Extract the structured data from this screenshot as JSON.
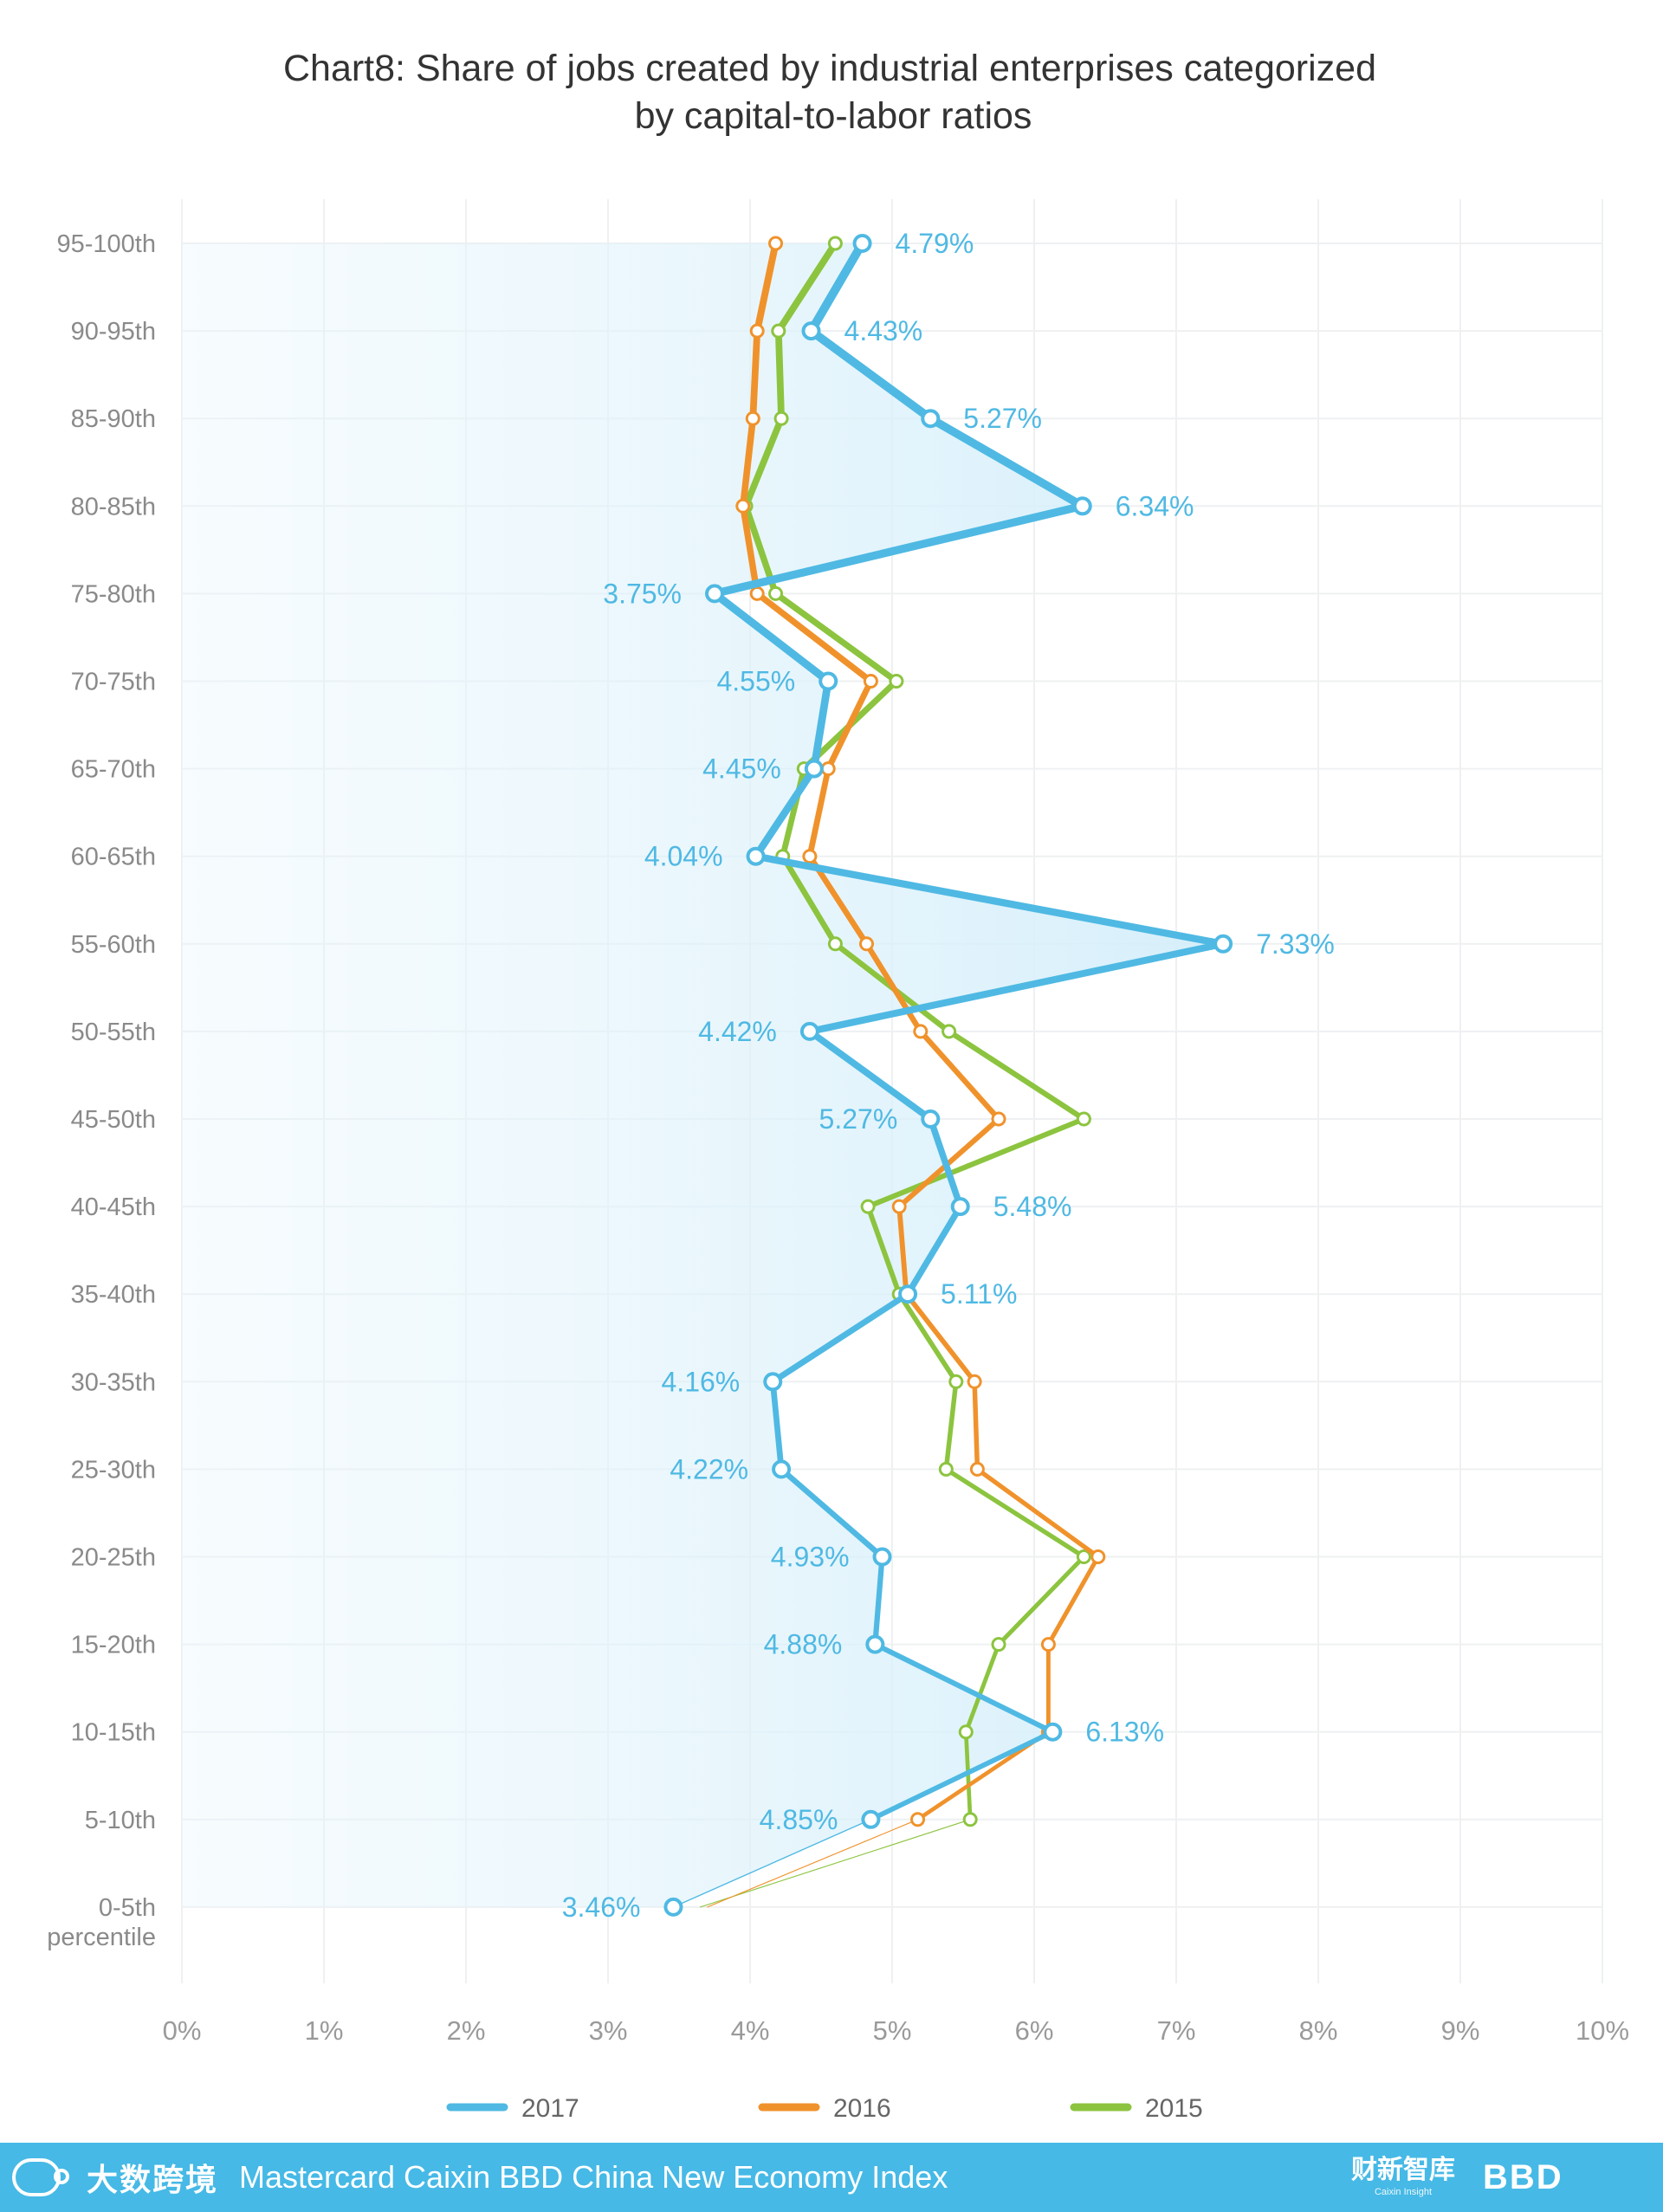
{
  "chart_data": {
    "type": "line",
    "orientation": "horizontal",
    "title_lines": [
      "Chart8: Share of jobs created by industrial enterprises categorized",
      "by capital-to-labor ratios"
    ],
    "categories": [
      "95-100th",
      "90-95th",
      "85-90th",
      "80-85th",
      "75-80th",
      "70-75th",
      "65-70th",
      "60-65th",
      "55-60th",
      "50-55th",
      "45-50th",
      "40-45th",
      "35-40th",
      "30-35th",
      "25-30th",
      "20-25th",
      "15-20th",
      "10-15th",
      "5-10th",
      "0-5th\npercentile"
    ],
    "x_ticks": [
      "0%",
      "1%",
      "2%",
      "3%",
      "4%",
      "5%",
      "6%",
      "7%",
      "8%",
      "9%",
      "10%"
    ],
    "xlim": [
      0,
      10
    ],
    "grid": true,
    "legend_position": "bottom",
    "series": [
      {
        "name": "2017",
        "color": "#4fb9e3",
        "values": [
          4.79,
          4.43,
          5.27,
          6.34,
          3.75,
          4.55,
          4.45,
          4.04,
          7.33,
          4.42,
          5.27,
          5.48,
          5.11,
          4.16,
          4.22,
          4.93,
          4.88,
          6.13,
          4.85,
          3.46
        ],
        "labels": [
          "4.79%",
          "4.43%",
          "5.27%",
          "6.34%",
          "3.75%",
          "4.55%",
          "4.45%",
          "4.04%",
          "7.33%",
          "4.42%",
          "5.27%",
          "5.48%",
          "5.11%",
          "4.16%",
          "4.22%",
          "4.93%",
          "4.88%",
          "6.13%",
          "4.85%",
          "3.46%"
        ]
      },
      {
        "name": "2016",
        "color": "#f0922b",
        "values": [
          4.18,
          4.05,
          4.02,
          3.95,
          4.05,
          4.85,
          4.55,
          4.42,
          4.82,
          5.2,
          5.75,
          5.05,
          5.1,
          5.58,
          5.6,
          6.45,
          6.1,
          6.1,
          5.18,
          3.7
        ]
      },
      {
        "name": "2015",
        "color": "#8cc43f",
        "values": [
          4.6,
          4.2,
          4.22,
          3.97,
          4.18,
          5.03,
          4.38,
          4.23,
          4.6,
          5.4,
          6.35,
          4.83,
          5.05,
          5.45,
          5.38,
          6.35,
          5.75,
          5.52,
          5.55,
          3.65
        ]
      }
    ]
  },
  "footer": {
    "title": "Mastercard Caixin BBD China New Economy Index",
    "left_logo_text": "大数跨境",
    "caixin_logo": "财新智库",
    "caixin_sub": "Caixin Insight",
    "bbd_logo": "BBD"
  }
}
